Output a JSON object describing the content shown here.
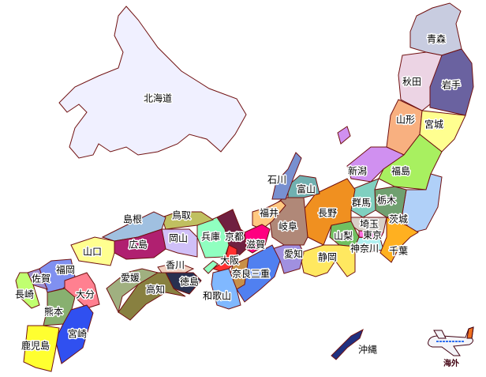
{
  "prefectures": [
    {
      "name": "北海道",
      "color": "#f0f0ff"
    },
    {
      "name": "青森",
      "color": "#c8cce0"
    },
    {
      "name": "秋田",
      "color": "#ecd4e4"
    },
    {
      "name": "岩手",
      "color": "#6a62a0"
    },
    {
      "name": "山形",
      "color": "#f8b080"
    },
    {
      "name": "宮城",
      "color": "#ffff90"
    },
    {
      "name": "新潟",
      "color": "#d090f0"
    },
    {
      "name": "福島",
      "color": "#a8f060"
    },
    {
      "name": "茨城",
      "color": "#b0d0f8"
    },
    {
      "name": "栃木",
      "color": "#70a070"
    },
    {
      "name": "群馬",
      "color": "#80d0c0"
    },
    {
      "name": "埼玉",
      "color": "#d8d0c8"
    },
    {
      "name": "東京",
      "color": "#ff70e0"
    },
    {
      "name": "神奈川",
      "color": "#b0f0f0"
    },
    {
      "name": "千葉",
      "color": "#ffb020"
    },
    {
      "name": "山梨",
      "color": "#70c060"
    },
    {
      "name": "長野",
      "color": "#f09020"
    },
    {
      "name": "静岡",
      "color": "#ffe860"
    },
    {
      "name": "愛知",
      "color": "#a090e0"
    },
    {
      "name": "岐阜",
      "color": "#b08878"
    },
    {
      "name": "富山",
      "color": "#70b0b0"
    },
    {
      "name": "石川",
      "color": "#7890d0"
    },
    {
      "name": "福井",
      "color": "#ffc880"
    },
    {
      "name": "滋賀",
      "color": "#ff0080"
    },
    {
      "name": "京都",
      "color": "#702040"
    },
    {
      "name": "三重",
      "color": "#5080f0"
    },
    {
      "name": "奈良",
      "color": "#c89048"
    },
    {
      "name": "大阪",
      "color": "#ff3030"
    },
    {
      "name": "和歌山",
      "color": "#80b8ff"
    },
    {
      "name": "兵庫",
      "color": "#90ffc0"
    },
    {
      "name": "岡山",
      "color": "#d0c0f8"
    },
    {
      "name": "鳥取",
      "color": "#c0c060"
    },
    {
      "name": "島根",
      "color": "#a0c0e0"
    },
    {
      "name": "広島",
      "color": "#b02070"
    },
    {
      "name": "山口",
      "color": "#ffff90"
    },
    {
      "name": "香川",
      "color": "#f0d0c0"
    },
    {
      "name": "徳島",
      "color": "#283050"
    },
    {
      "name": "愛媛",
      "color": "#a0b080"
    },
    {
      "name": "高知",
      "color": "#888040"
    },
    {
      "name": "福岡",
      "color": "#8090f0"
    },
    {
      "name": "佐賀",
      "color": "#a090d0"
    },
    {
      "name": "長崎",
      "color": "#c0ff70"
    },
    {
      "name": "大分",
      "color": "#ff8090"
    },
    {
      "name": "熊本",
      "color": "#88b070"
    },
    {
      "name": "宮崎",
      "color": "#3050f0"
    },
    {
      "name": "鹿児島",
      "color": "#ffff30"
    },
    {
      "name": "沖縄",
      "color": "#203080"
    }
  ],
  "overseas": {
    "label": "海外",
    "icon": "airplane-icon"
  },
  "border_color": "#701010"
}
